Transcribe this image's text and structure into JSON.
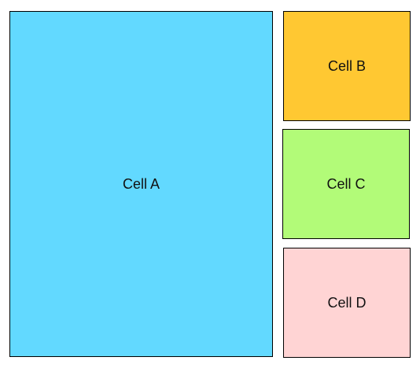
{
  "cells": [
    {
      "label": "Cell A",
      "color": "#62d9ff"
    },
    {
      "label": "Cell B",
      "color": "#ffc832"
    },
    {
      "label": "Cell C",
      "color": "#b2fb78"
    },
    {
      "label": "Cell D",
      "color": "#ffd4d4"
    }
  ]
}
